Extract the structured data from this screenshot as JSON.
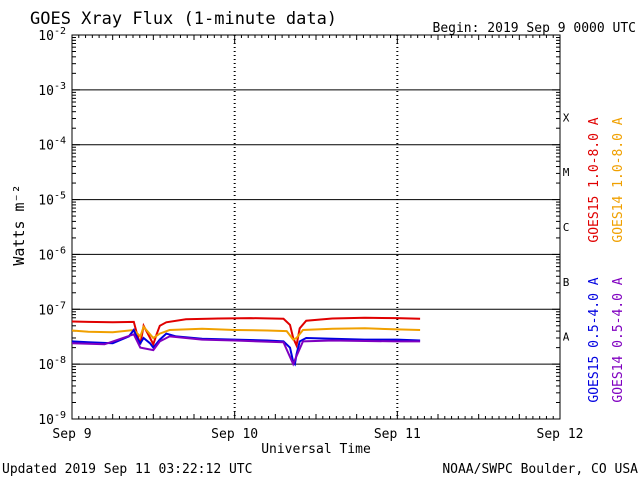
{
  "header": {
    "title": "GOES Xray Flux (1-minute data)",
    "begin": "Begin:  2019 Sep 9 0000 UTC"
  },
  "footer": {
    "updated": "Updated 2019 Sep 11 03:22:12 UTC",
    "credit": "NOAA/SWPC Boulder, CO USA"
  },
  "chart_data": {
    "type": "line",
    "title": "GOES Xray Flux (1-minute data)",
    "xlabel": "Universal Time",
    "ylabel": "Watts m⁻²",
    "yscale": "log",
    "ylim": [
      1e-09,
      0.01
    ],
    "xlim_days": [
      0,
      3
    ],
    "x_ticks": [
      "Sep 9",
      "Sep 10",
      "Sep 11",
      "Sep 12"
    ],
    "y_ticks": [
      {
        "base": "10",
        "exp": "-9"
      },
      {
        "base": "10",
        "exp": "-8"
      },
      {
        "base": "10",
        "exp": "-7"
      },
      {
        "base": "10",
        "exp": "-6"
      },
      {
        "base": "10",
        "exp": "-5"
      },
      {
        "base": "10",
        "exp": "-4"
      },
      {
        "base": "10",
        "exp": "-3"
      },
      {
        "base": "10",
        "exp": "-2"
      }
    ],
    "flare_classes": [
      {
        "label": "A",
        "decade": -8
      },
      {
        "label": "B",
        "decade": -7
      },
      {
        "label": "C",
        "decade": -6
      },
      {
        "label": "M",
        "decade": -5
      },
      {
        "label": "X",
        "decade": -4
      }
    ],
    "legend_right": "right-side vertical",
    "series": [
      {
        "name": "GOES15 1.0-8.0 A",
        "color": "#e00000",
        "points": [
          [
            0.0,
            6e-08
          ],
          [
            0.1,
            5.9e-08
          ],
          [
            0.25,
            5.8e-08
          ],
          [
            0.38,
            5.9e-08
          ],
          [
            0.4,
            3.5e-08
          ],
          [
            0.42,
            2.3e-08
          ],
          [
            0.44,
            5e-08
          ],
          [
            0.48,
            3e-08
          ],
          [
            0.5,
            2.3e-08
          ],
          [
            0.52,
            3.5e-08
          ],
          [
            0.54,
            5e-08
          ],
          [
            0.58,
            5.8e-08
          ],
          [
            0.7,
            6.6e-08
          ],
          [
            0.9,
            6.8e-08
          ],
          [
            1.1,
            6.9e-08
          ],
          [
            1.3,
            6.7e-08
          ],
          [
            1.34,
            5.2e-08
          ],
          [
            1.36,
            3e-08
          ],
          [
            1.38,
            2.2e-08
          ],
          [
            1.4,
            4.5e-08
          ],
          [
            1.44,
            6.2e-08
          ],
          [
            1.6,
            6.8e-08
          ],
          [
            1.8,
            7e-08
          ],
          [
            2.0,
            6.9e-08
          ],
          [
            2.14,
            6.7e-08
          ]
        ]
      },
      {
        "name": "GOES14 1.0-8.0 A",
        "color": "#f0a000",
        "points": [
          [
            0.0,
            4.1e-08
          ],
          [
            0.1,
            3.9e-08
          ],
          [
            0.25,
            3.8e-08
          ],
          [
            0.38,
            4.2e-08
          ],
          [
            0.42,
            3.2e-08
          ],
          [
            0.44,
            4.8e-08
          ],
          [
            0.5,
            3e-08
          ],
          [
            0.54,
            3.6e-08
          ],
          [
            0.6,
            4.2e-08
          ],
          [
            0.8,
            4.4e-08
          ],
          [
            1.0,
            4.2e-08
          ],
          [
            1.2,
            4.1e-08
          ],
          [
            1.32,
            4e-08
          ],
          [
            1.36,
            2.8e-08
          ],
          [
            1.38,
            3e-08
          ],
          [
            1.42,
            4.2e-08
          ],
          [
            1.6,
            4.4e-08
          ],
          [
            1.8,
            4.5e-08
          ],
          [
            2.0,
            4.3e-08
          ],
          [
            2.14,
            4.2e-08
          ]
        ]
      },
      {
        "name": "GOES15 0.5-4.0 A",
        "color": "#0000e0",
        "points": [
          [
            0.0,
            2.6e-08
          ],
          [
            0.1,
            2.5e-08
          ],
          [
            0.25,
            2.4e-08
          ],
          [
            0.35,
            3.2e-08
          ],
          [
            0.38,
            4.2e-08
          ],
          [
            0.4,
            3e-08
          ],
          [
            0.42,
            2.4e-08
          ],
          [
            0.44,
            3e-08
          ],
          [
            0.48,
            2.4e-08
          ],
          [
            0.5,
            2e-08
          ],
          [
            0.54,
            2.8e-08
          ],
          [
            0.58,
            3.6e-08
          ],
          [
            0.64,
            3.2e-08
          ],
          [
            0.8,
            2.9e-08
          ],
          [
            1.0,
            2.8e-08
          ],
          [
            1.2,
            2.7e-08
          ],
          [
            1.3,
            2.6e-08
          ],
          [
            1.34,
            2e-08
          ],
          [
            1.36,
            1.1e-08
          ],
          [
            1.37,
            1e-08
          ],
          [
            1.38,
            1.5e-08
          ],
          [
            1.4,
            2.6e-08
          ],
          [
            1.44,
            3e-08
          ],
          [
            1.6,
            2.9e-08
          ],
          [
            1.8,
            2.8e-08
          ],
          [
            2.0,
            2.8e-08
          ],
          [
            2.14,
            2.7e-08
          ]
        ]
      },
      {
        "name": "GOES14 0.5-4.0 A",
        "color": "#8000c0",
        "points": [
          [
            0.0,
            2.4e-08
          ],
          [
            0.2,
            2.3e-08
          ],
          [
            0.38,
            3.5e-08
          ],
          [
            0.42,
            2e-08
          ],
          [
            0.5,
            1.8e-08
          ],
          [
            0.54,
            2.6e-08
          ],
          [
            0.6,
            3.2e-08
          ],
          [
            0.8,
            2.8e-08
          ],
          [
            1.0,
            2.7e-08
          ],
          [
            1.3,
            2.5e-08
          ],
          [
            1.36,
            1e-08
          ],
          [
            1.38,
            1.4e-08
          ],
          [
            1.42,
            2.6e-08
          ],
          [
            1.6,
            2.7e-08
          ],
          [
            2.0,
            2.6e-08
          ],
          [
            2.14,
            2.6e-08
          ]
        ]
      }
    ]
  }
}
